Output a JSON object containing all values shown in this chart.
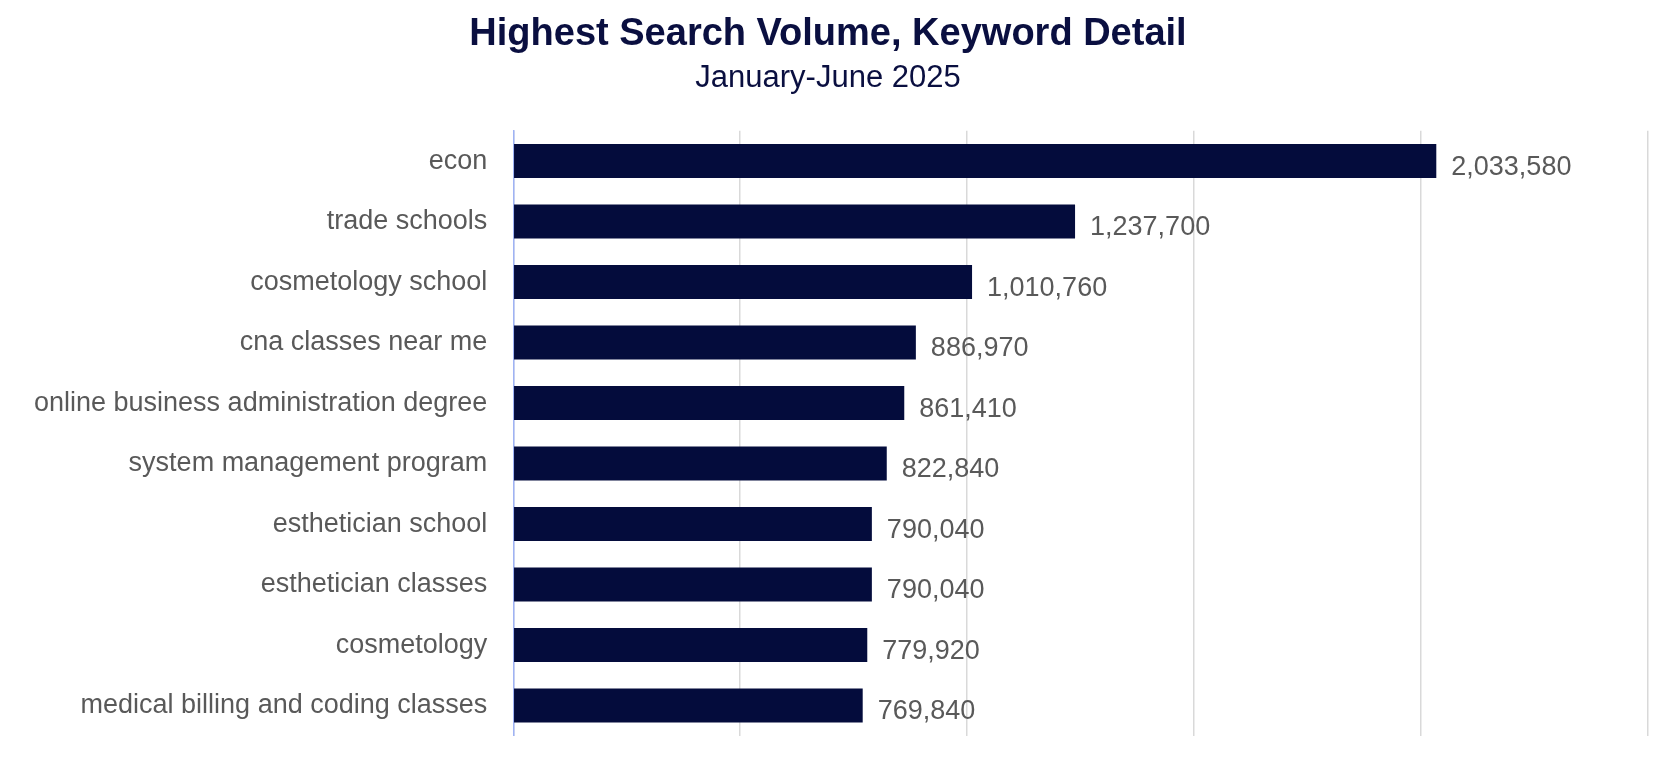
{
  "chart_data": {
    "type": "bar",
    "orientation": "horizontal",
    "title": "Highest Search Volume, Keyword Detail",
    "subtitle": "January-June 2025",
    "categories": [
      "econ",
      "trade schools",
      "cosmetology school",
      "cna classes near me",
      "online business administration degree",
      "system management program",
      "esthetician school",
      "esthetician classes",
      "cosmetology",
      "medical billing and coding classes"
    ],
    "values": [
      2033580,
      1237700,
      1010760,
      886970,
      861410,
      822840,
      790040,
      790040,
      779920,
      769840
    ],
    "value_labels": [
      "2,033,580",
      "1,237,700",
      "1,010,760",
      "886,970",
      "861,410",
      "822,840",
      "790,040",
      "790,040",
      "779,920",
      "769,840"
    ],
    "color": "#040c3c",
    "tick_labels": "y",
    "grid": "x",
    "legend": false
  }
}
